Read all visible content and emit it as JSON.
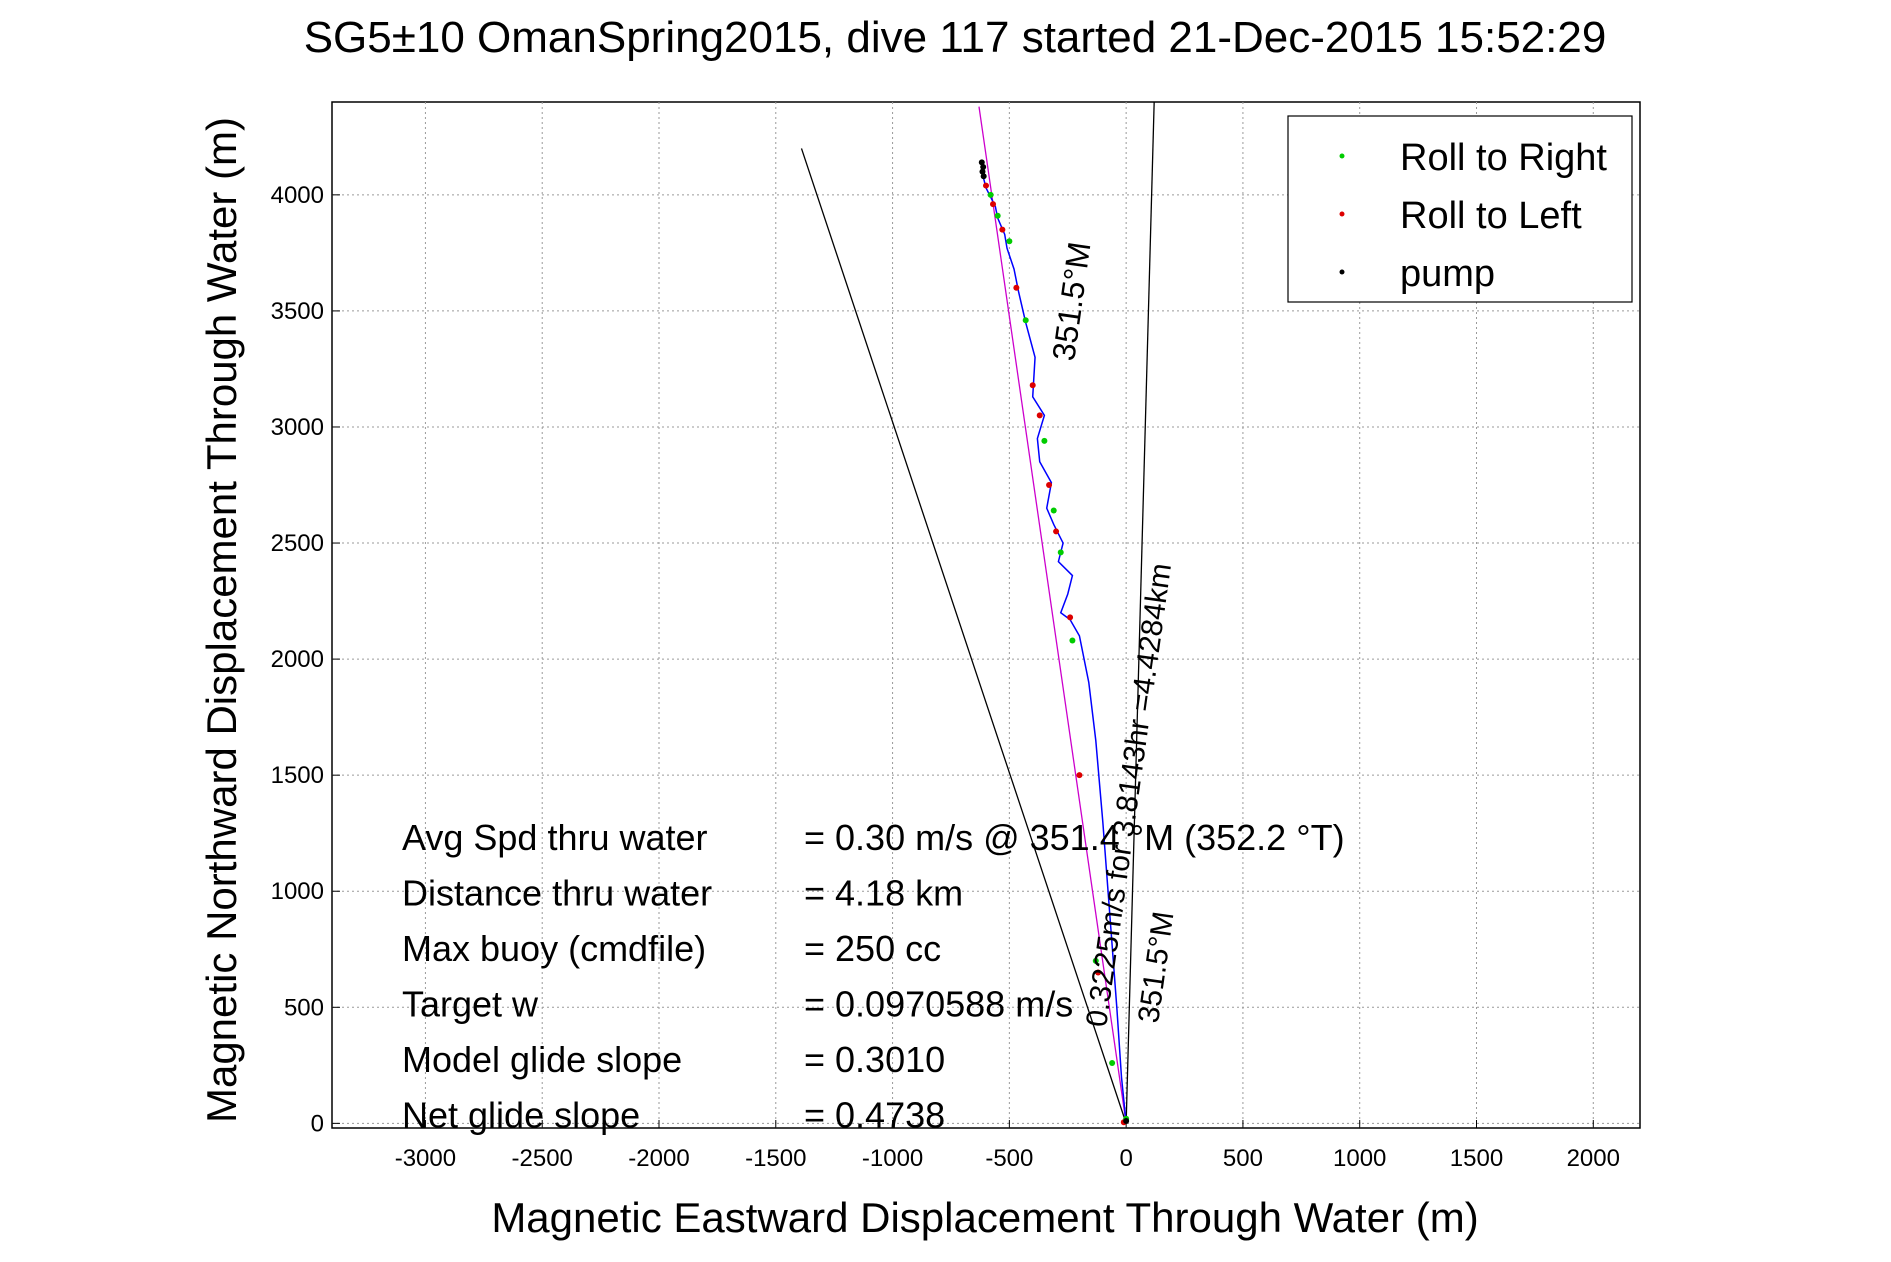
{
  "chart_data": {
    "type": "scatter",
    "title": "SG5±10 OmanSpring2015, dive 117 started 21-Dec-2015 15:52:29",
    "xlabel": "Magnetic Eastward Displacement Through Water (m)",
    "ylabel": "Magnetic Northward Displacement Through Water (m)",
    "xlim": [
      -3400,
      2200
    ],
    "ylim": [
      -20,
      4400
    ],
    "xticks": [
      -3000,
      -2500,
      -2000,
      -1500,
      -1000,
      -500,
      0,
      500,
      1000,
      1500,
      2000
    ],
    "yticks": [
      0,
      500,
      1000,
      1500,
      2000,
      2500,
      3000,
      3500,
      4000
    ],
    "grid": true,
    "legend_position": "top-right",
    "legend": [
      {
        "label": "Roll to Right",
        "color": "#00cc00"
      },
      {
        "label": "Roll to Left",
        "color": "#dd0000"
      },
      {
        "label": "pump",
        "color": "#000000"
      }
    ],
    "track": {
      "x": [
        0,
        -20,
        -40,
        -70,
        -100,
        -130,
        -160,
        -200,
        -240,
        -280,
        -250,
        -230,
        -290,
        -270,
        -310,
        -340,
        -320,
        -370,
        -380,
        -350,
        -400,
        -390,
        -430,
        -460,
        -480,
        -510,
        -520,
        -550,
        -560,
        -580,
        -600,
        -610,
        -610
      ],
      "y": [
        0,
        200,
        500,
        900,
        1300,
        1650,
        1900,
        2100,
        2170,
        2200,
        2280,
        2360,
        2420,
        2500,
        2580,
        2650,
        2760,
        2850,
        2950,
        3050,
        3130,
        3300,
        3450,
        3580,
        3680,
        3770,
        3830,
        3900,
        3950,
        3990,
        4030,
        4070,
        4120
      ]
    },
    "roll_right_points": {
      "x": [
        0,
        -60,
        -130,
        -230,
        -280,
        -310,
        -350,
        -430,
        -500,
        -550,
        -580
      ],
      "y": [
        20,
        260,
        700,
        2080,
        2460,
        2640,
        2940,
        3460,
        3800,
        3910,
        4000
      ]
    },
    "roll_left_points": {
      "x": [
        -10,
        -120,
        -200,
        -240,
        -300,
        -330,
        -370,
        -400,
        -470,
        -530,
        -570,
        -600
      ],
      "y": [
        5,
        650,
        1500,
        2180,
        2550,
        2750,
        3050,
        3180,
        3600,
        3850,
        3960,
        4040
      ]
    },
    "pump_points": {
      "x": [
        0,
        -610,
        -615,
        -612,
        -618
      ],
      "y": [
        10,
        4080,
        4100,
        4120,
        4140
      ]
    },
    "heading_line": {
      "x": [
        0,
        -630
      ],
      "y": [
        0,
        4380
      ]
    },
    "heading_label": "351.5°M",
    "heading_label_mid": "351.5°M",
    "current_label": "0.3225m/s for 3.8143hr =4.4284km",
    "line_wide_left": {
      "x": [
        0,
        -1390
      ],
      "y": [
        0,
        4200
      ]
    },
    "line_wide_right": {
      "x": [
        0,
        120
      ],
      "y": [
        0,
        4400
      ]
    },
    "stats": [
      {
        "label": "Avg Spd thru water",
        "value": "=  0.30 m/s @ 351.4 °M (352.2 °T)"
      },
      {
        "label": "Distance thru water",
        "value": "=  4.18 km"
      },
      {
        "label": "Max buoy (cmdfile)",
        "value": "= 250 cc"
      },
      {
        "label": "Target w",
        "value": "= 0.0970588 m/s"
      },
      {
        "label": "Model glide slope",
        "value": "= 0.3010"
      },
      {
        "label": "Net glide slope",
        "value": "= 0.4738"
      }
    ]
  }
}
